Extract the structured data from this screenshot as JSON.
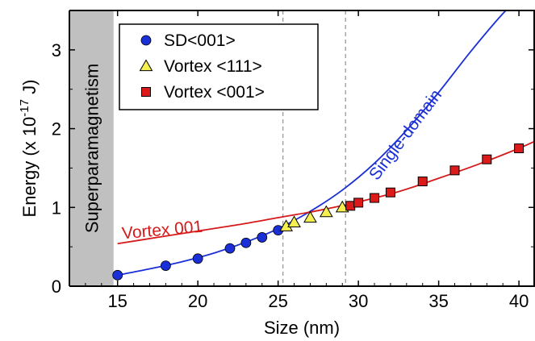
{
  "chart_data": {
    "type": "scatter",
    "xlabel": "Size (nm)",
    "ylabel_main": "Energy (x 10",
    "ylabel_exp": "-17",
    "ylabel_unit": " J)",
    "xlim": [
      12,
      41
    ],
    "ylim": [
      0,
      3.5
    ],
    "xticks": [
      15,
      20,
      25,
      30,
      35,
      40
    ],
    "yticks": [
      0,
      1,
      2,
      3
    ],
    "grid": false,
    "legend_position": "top-left",
    "shaded_region": {
      "label": "Superparamagnetism",
      "x_range": [
        12,
        14.75
      ],
      "color": "#c0c0c0"
    },
    "reference_lines_x": [
      25.3,
      29.2
    ],
    "series": [
      {
        "name": "SD<001>",
        "marker": "circle",
        "color": "#1a2fd6",
        "x": [
          15,
          18,
          20,
          22,
          23,
          24,
          25
        ],
        "y": [
          0.14,
          0.26,
          0.35,
          0.48,
          0.55,
          0.62,
          0.71
        ]
      },
      {
        "name": "Vortex <111>",
        "marker": "triangle",
        "color": "#f5f050",
        "x": [
          25.5,
          26,
          27,
          28,
          29
        ],
        "y": [
          0.76,
          0.81,
          0.87,
          0.94,
          1.0
        ]
      },
      {
        "name": "Vortex <001>",
        "marker": "square",
        "color": "#dd1a1a",
        "x": [
          29.5,
          30,
          31,
          32,
          34,
          36,
          38,
          40
        ],
        "y": [
          1.02,
          1.06,
          1.12,
          1.19,
          1.33,
          1.47,
          1.61,
          1.75
        ]
      }
    ],
    "curves": [
      {
        "label": "Single-domain",
        "color": "#1a2fd6",
        "x": [
          15,
          17,
          19,
          21,
          23,
          25,
          27,
          29,
          31,
          33,
          35,
          37,
          39,
          40.5
        ],
        "y": [
          0.14,
          0.22,
          0.31,
          0.42,
          0.56,
          0.73,
          0.95,
          1.22,
          1.56,
          1.98,
          2.46,
          2.98,
          3.46,
          3.76
        ]
      },
      {
        "label": "Vortex 001",
        "color": "#d61a1a",
        "x": [
          15,
          17.5,
          20,
          22.5,
          25,
          27.5,
          30,
          32.5,
          35,
          37.5,
          40,
          41
        ],
        "y": [
          0.54,
          0.62,
          0.7,
          0.78,
          0.87,
          0.96,
          1.07,
          1.2,
          1.37,
          1.55,
          1.75,
          1.84
        ]
      }
    ]
  }
}
